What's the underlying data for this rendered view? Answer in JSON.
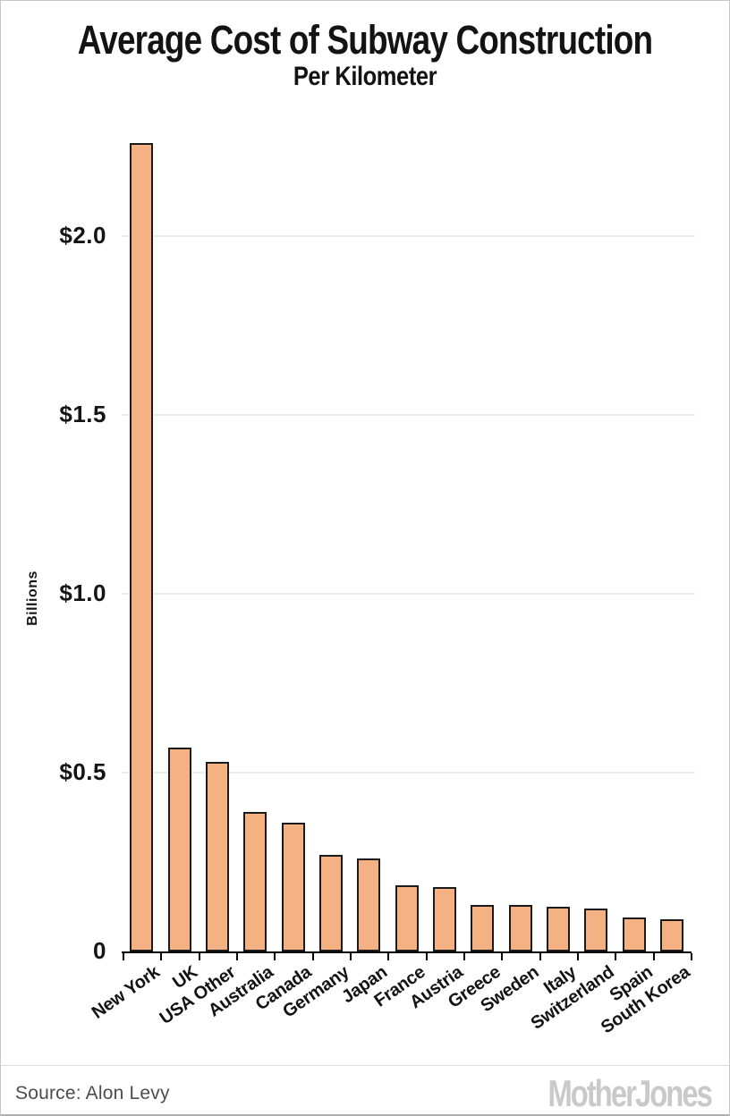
{
  "header": {
    "title": "Average Cost of Subway Construction",
    "subtitle": "Per Kilometer"
  },
  "chart_data": {
    "type": "bar",
    "title": "Average Cost of Subway Construction",
    "subtitle": "Per Kilometer",
    "xlabel": "",
    "ylabel": "Billions",
    "ylim": [
      0,
      2.3
    ],
    "grid": "horizontal-light",
    "legend": "none",
    "yticks": [
      {
        "label": "$2.0",
        "value": 2.0
      },
      {
        "label": "$1.5",
        "value": 1.5
      },
      {
        "label": "$1.0",
        "value": 1.0
      },
      {
        "label": "$0.5",
        "value": 0.5
      },
      {
        "label": "0",
        "value": 0
      }
    ],
    "categories": [
      "New York",
      "UK",
      "USA Other",
      "Australia",
      "Canada",
      "Germany",
      "Japan",
      "France",
      "Austria",
      "Greece",
      "Sweden",
      "Italy",
      "Switzerland",
      "Spain",
      "South Korea"
    ],
    "values": [
      2.26,
      0.57,
      0.53,
      0.39,
      0.36,
      0.27,
      0.26,
      0.185,
      0.18,
      0.13,
      0.13,
      0.125,
      0.12,
      0.095,
      0.09
    ],
    "colors": {
      "bar_fill": "#f4b183",
      "bar_border": "#1b1b1b",
      "gridline": "#ececec",
      "axis": "#000000",
      "text": "#141414"
    }
  },
  "footer": {
    "source": "Source: Alon Levy",
    "logo": "MotherJones",
    "logo_color": "#c9c9c9"
  }
}
